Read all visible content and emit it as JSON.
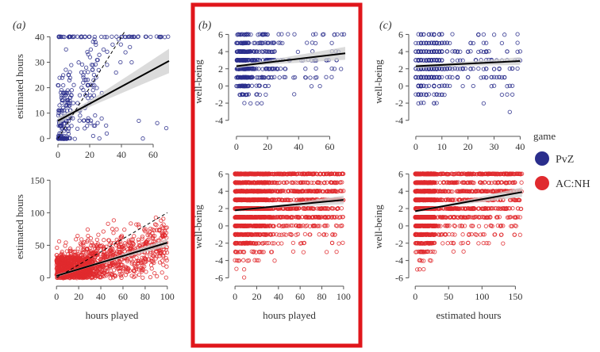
{
  "figure": {
    "highlight_color": "#e0161b",
    "colors": {
      "pvz": "#2a2e8c",
      "acnh": "#e02a2e",
      "fit_line": "#000000",
      "ci_band": "#cfcfcf",
      "identity_line": "#000000"
    }
  },
  "legend": {
    "title": "game",
    "items": [
      {
        "label": "PvZ",
        "color": "#2a2e8c"
      },
      {
        "label": "AC:NH",
        "color": "#e02a2e"
      }
    ]
  },
  "chart_data": [
    {
      "id": "a_top",
      "panel": "(a)",
      "type": "scatter",
      "series_name": "PvZ",
      "color": "#2a2e8c",
      "title": "",
      "xlabel": "",
      "ylabel": "estimated hours",
      "xlim": [
        -3,
        71
      ],
      "ylim": [
        -1,
        42
      ],
      "xticks": [
        0,
        20,
        40,
        60
      ],
      "yticks": [
        0,
        10,
        20,
        30,
        40
      ],
      "fit": {
        "x": [
          0,
          70
        ],
        "y": [
          7,
          30.5
        ]
      },
      "ci": {
        "x": [
          0,
          10,
          20,
          30,
          40,
          50,
          60,
          70
        ],
        "half": [
          1.5,
          1.0,
          1.3,
          1.9,
          2.6,
          3.3,
          4.0,
          4.8
        ]
      },
      "identity_line": {
        "x": [
          0,
          43
        ],
        "y": [
          0,
          43
        ]
      },
      "points": {
        "n": 300,
        "seed": 11,
        "kind": "a_top"
      }
    },
    {
      "id": "a_bottom",
      "type": "scatter",
      "series_name": "AC:NH",
      "color": "#e02a2e",
      "title": "",
      "xlabel": "hours played",
      "ylabel": "estimated hours",
      "xlim": [
        -3,
        103
      ],
      "ylim": [
        -8,
        165
      ],
      "xticks": [
        0,
        20,
        40,
        60,
        80,
        100
      ],
      "yticks": [
        0,
        50,
        100,
        150
      ],
      "fit": {
        "x": [
          0,
          100
        ],
        "y": [
          3,
          54
        ]
      },
      "ci": {
        "x": [
          0,
          25,
          50,
          75,
          100
        ],
        "half": [
          2,
          1.5,
          2.5,
          4,
          6
        ]
      },
      "identity_line": {
        "x": [
          0,
          100
        ],
        "y": [
          0,
          100
        ]
      },
      "points": {
        "n": 1400,
        "seed": 23,
        "kind": "a_bottom"
      }
    },
    {
      "id": "b_top",
      "panel": "(b)",
      "type": "scatter",
      "series_name": "PvZ",
      "color": "#2a2e8c",
      "title": "",
      "xlabel": "",
      "ylabel": "well-being",
      "xlim": [
        -3,
        71
      ],
      "ylim": [
        -5.5,
        6.5
      ],
      "xticks": [
        0,
        20,
        40,
        60
      ],
      "yticks": [
        -4,
        -2,
        0,
        2,
        4,
        6
      ],
      "fit": {
        "x": [
          0,
          70
        ],
        "y": [
          2.3,
          3.8
        ]
      },
      "ci": {
        "x": [
          0,
          10,
          20,
          30,
          40,
          50,
          60,
          70
        ],
        "half": [
          0.25,
          0.2,
          0.25,
          0.35,
          0.45,
          0.55,
          0.65,
          0.75
        ]
      },
      "points": {
        "n": 480,
        "seed": 37,
        "kind": "b_top"
      }
    },
    {
      "id": "b_bottom",
      "type": "scatter",
      "series_name": "AC:NH",
      "color": "#e02a2e",
      "title": "",
      "xlabel": "hours played",
      "ylabel": "well-being",
      "xlim": [
        -3,
        103
      ],
      "ylim": [
        -6.6,
        6.4
      ],
      "xticks": [
        0,
        20,
        40,
        60,
        80,
        100
      ],
      "yticks": [
        -6,
        -4,
        -2,
        0,
        2,
        4,
        6
      ],
      "fit": {
        "x": [
          0,
          100
        ],
        "y": [
          1.8,
          3.0
        ]
      },
      "ci": {
        "x": [
          0,
          25,
          50,
          75,
          100
        ],
        "half": [
          0.12,
          0.1,
          0.2,
          0.35,
          0.5
        ]
      },
      "points": {
        "n": 2400,
        "seed": 41,
        "kind": "b_bottom"
      }
    },
    {
      "id": "c_top",
      "panel": "(c)",
      "type": "scatter",
      "series_name": "PvZ",
      "color": "#2a2e8c",
      "title": "",
      "xlabel": "",
      "ylabel": "well-being",
      "xlim": [
        -1.5,
        42
      ],
      "ylim": [
        -5.5,
        6.5
      ],
      "xticks": [
        0,
        10,
        20,
        30,
        40
      ],
      "yticks": [
        -4,
        -2,
        0,
        2,
        4,
        6
      ],
      "fit": {
        "x": [
          0,
          40
        ],
        "y": [
          2.3,
          2.9
        ]
      },
      "ci": {
        "x": [
          0,
          10,
          20,
          30,
          40
        ],
        "half": [
          0.25,
          0.2,
          0.25,
          0.35,
          0.45
        ]
      },
      "points": {
        "n": 480,
        "seed": 53,
        "kind": "c_top"
      }
    },
    {
      "id": "c_bottom",
      "type": "scatter",
      "series_name": "AC:NH",
      "color": "#e02a2e",
      "title": "",
      "xlabel": "estimated hours",
      "ylabel": "well-being",
      "xlim": [
        -5,
        165
      ],
      "ylim": [
        -6.6,
        6.4
      ],
      "xticks": [
        0,
        50,
        100,
        150
      ],
      "yticks": [
        -6,
        -4,
        -2,
        0,
        2,
        4,
        6
      ],
      "fit": {
        "x": [
          0,
          160
        ],
        "y": [
          1.7,
          3.9
        ]
      },
      "ci": {
        "x": [
          0,
          40,
          80,
          120,
          160
        ],
        "half": [
          0.12,
          0.12,
          0.25,
          0.4,
          0.55
        ]
      },
      "points": {
        "n": 2400,
        "seed": 67,
        "kind": "c_bottom"
      }
    }
  ]
}
